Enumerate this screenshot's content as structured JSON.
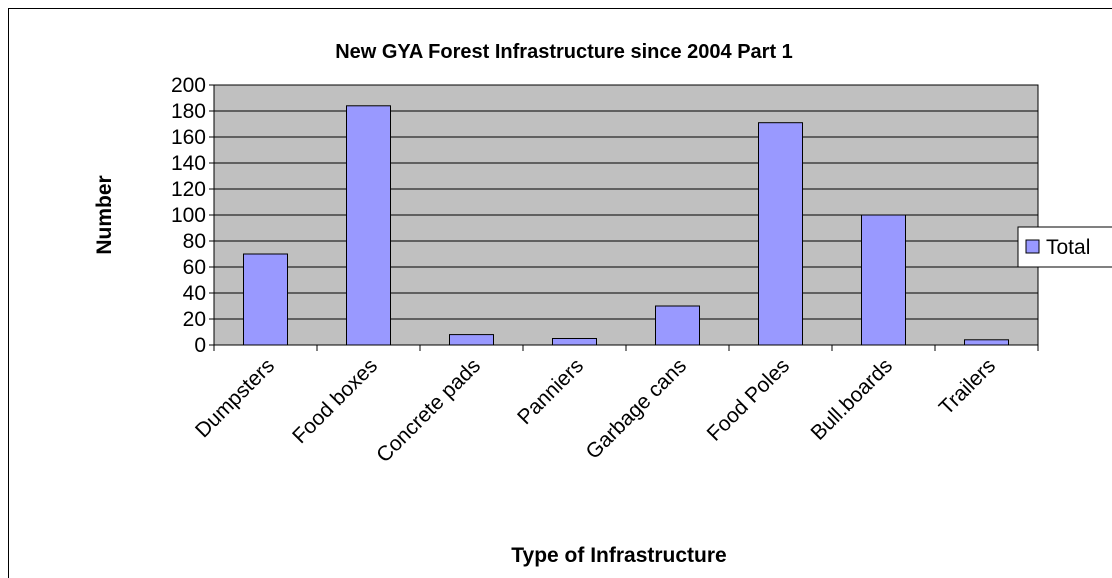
{
  "chart_data": {
    "type": "bar",
    "title": "New GYA Forest Infrastructure since 2004 Part 1",
    "xlabel": "Type of Infrastructure",
    "ylabel": "Number",
    "categories": [
      "Dumpsters",
      "Food boxes",
      "Concrete pads",
      "Panniers",
      "Garbage cans",
      "Food Poles",
      "Bull.boards",
      "Trailers"
    ],
    "series": [
      {
        "name": "Total",
        "values": [
          70,
          184,
          8,
          5,
          30,
          171,
          100,
          4
        ]
      }
    ],
    "ylim": [
      0,
      200
    ],
    "yticks": [
      0,
      20,
      40,
      60,
      80,
      100,
      120,
      140,
      160,
      180,
      200
    ],
    "grid": true,
    "legend": "right",
    "colors": {
      "bar_fill": "#9999ff",
      "plot_background": "#c0c0c0",
      "gridline": "#000000"
    }
  }
}
